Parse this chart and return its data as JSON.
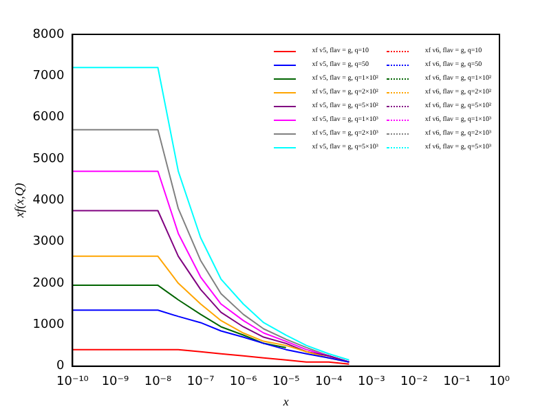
{
  "chart_data": {
    "type": "line",
    "xlabel": "x",
    "ylabel": "xf(x,Q)",
    "log": "x",
    "grid": false,
    "legend": "top right",
    "x": [
      1e-10,
      1e-08,
      3e-08,
      1e-07,
      3e-07,
      1e-06,
      3e-06,
      1e-05,
      3e-05,
      0.0001,
      0.0003
    ],
    "xlim": [
      1e-10,
      1
    ],
    "xticks": [
      {
        "value": 1e-10,
        "label": "10⁻¹⁰"
      },
      {
        "value": 1e-09,
        "label": "10⁻⁹"
      },
      {
        "value": 1e-08,
        "label": "10⁻⁸"
      },
      {
        "value": 1e-07,
        "label": "10⁻⁷"
      },
      {
        "value": 1e-06,
        "label": "10⁻⁶"
      },
      {
        "value": 1e-05,
        "label": "10⁻⁵"
      },
      {
        "value": 0.0001,
        "label": "10⁻⁴"
      },
      {
        "value": 0.001,
        "label": "10⁻³"
      },
      {
        "value": 0.01,
        "label": "10⁻²"
      },
      {
        "value": 0.1,
        "label": "10⁻¹"
      },
      {
        "value": 1,
        "label": "10⁰"
      }
    ],
    "ylim": [
      0,
      8000
    ],
    "yticks": [
      0,
      1000,
      2000,
      3000,
      4000,
      5000,
      6000,
      7000,
      8000
    ],
    "series": [
      {
        "name": "xf v5, flav = g, q=10",
        "color": "#ff0000",
        "line_style": "solid",
        "values": [
          400,
          400,
          400,
          350,
          300,
          250,
          200,
          150,
          100,
          100,
          50
        ]
      },
      {
        "name": "xf v5, flav = g, q=50",
        "color": "#0000ff",
        "line_style": "solid",
        "values": [
          1350,
          1350,
          1200,
          1050,
          850,
          700,
          550,
          400,
          300,
          200,
          100
        ]
      },
      {
        "name": "xf v5, flav = g, q=1×10²",
        "color": "#006400",
        "line_style": "solid",
        "values": [
          1950,
          1950,
          1600,
          1250,
          950,
          750,
          550,
          450,
          null,
          null,
          null
        ]
      },
      {
        "name": "xf v5, flav = g, q=2×10²",
        "color": "#ffa500",
        "line_style": "solid",
        "values": [
          2650,
          2650,
          2000,
          1500,
          1100,
          800,
          600,
          500,
          350,
          200,
          100
        ]
      },
      {
        "name": "xf v5, flav = g, q=5×10²",
        "color": "#800080",
        "line_style": "solid",
        "values": [
          3750,
          3750,
          2650,
          1850,
          1300,
          950,
          700,
          550,
          350,
          250,
          100
        ]
      },
      {
        "name": "xf v5, flav = g, q=1×10³",
        "color": "#ff00ff",
        "line_style": "solid",
        "values": [
          4700,
          4700,
          3200,
          2150,
          1500,
          1100,
          800,
          600,
          400,
          250,
          100
        ]
      },
      {
        "name": "xf v5, flav = g, q=2×10³",
        "color": "#808080",
        "line_style": "solid",
        "values": [
          5700,
          5700,
          3800,
          2550,
          1750,
          1250,
          900,
          650,
          450,
          250,
          100
        ]
      },
      {
        "name": "xf v5, flav = g, q=5×10³",
        "color": "#00ffff",
        "line_style": "solid",
        "values": [
          7200,
          7200,
          4700,
          3100,
          2100,
          1500,
          1050,
          750,
          500,
          300,
          150
        ]
      },
      {
        "name": "xf v6, flav = g, q=10",
        "color": "#ff0000",
        "line_style": "dotted",
        "values": [
          null,
          null,
          null,
          null,
          null,
          null,
          null,
          null,
          null,
          null,
          null
        ]
      },
      {
        "name": "xf v6, flav = g, q=50",
        "color": "#0000ff",
        "line_style": "dotted",
        "values": [
          null,
          null,
          null,
          null,
          null,
          null,
          null,
          null,
          null,
          null,
          null
        ]
      },
      {
        "name": "xf v6, flav = g, q=1×10²",
        "color": "#006400",
        "line_style": "dotted",
        "values": [
          null,
          null,
          null,
          null,
          null,
          null,
          null,
          null,
          null,
          null,
          null
        ]
      },
      {
        "name": "xf v6, flav = g, q=2×10²",
        "color": "#ffa500",
        "line_style": "dotted",
        "values": [
          null,
          null,
          null,
          null,
          null,
          null,
          null,
          null,
          null,
          null,
          null
        ]
      },
      {
        "name": "xf v6, flav = g, q=5×10²",
        "color": "#800080",
        "line_style": "dotted",
        "values": [
          null,
          null,
          null,
          null,
          null,
          null,
          null,
          null,
          null,
          null,
          null
        ]
      },
      {
        "name": "xf v6, flav = g, q=1×10³",
        "color": "#ff00ff",
        "line_style": "dotted",
        "values": [
          null,
          null,
          null,
          null,
          null,
          null,
          null,
          null,
          null,
          null,
          null
        ]
      },
      {
        "name": "xf v6, flav = g, q=2×10³",
        "color": "#808080",
        "line_style": "dotted",
        "values": [
          null,
          null,
          null,
          null,
          null,
          null,
          null,
          null,
          null,
          null,
          null
        ]
      },
      {
        "name": "xf v6, flav = g, q=5×10³",
        "color": "#00ffff",
        "line_style": "dotted",
        "values": [
          null,
          null,
          null,
          null,
          null,
          null,
          null,
          null,
          null,
          null,
          null
        ]
      }
    ]
  }
}
